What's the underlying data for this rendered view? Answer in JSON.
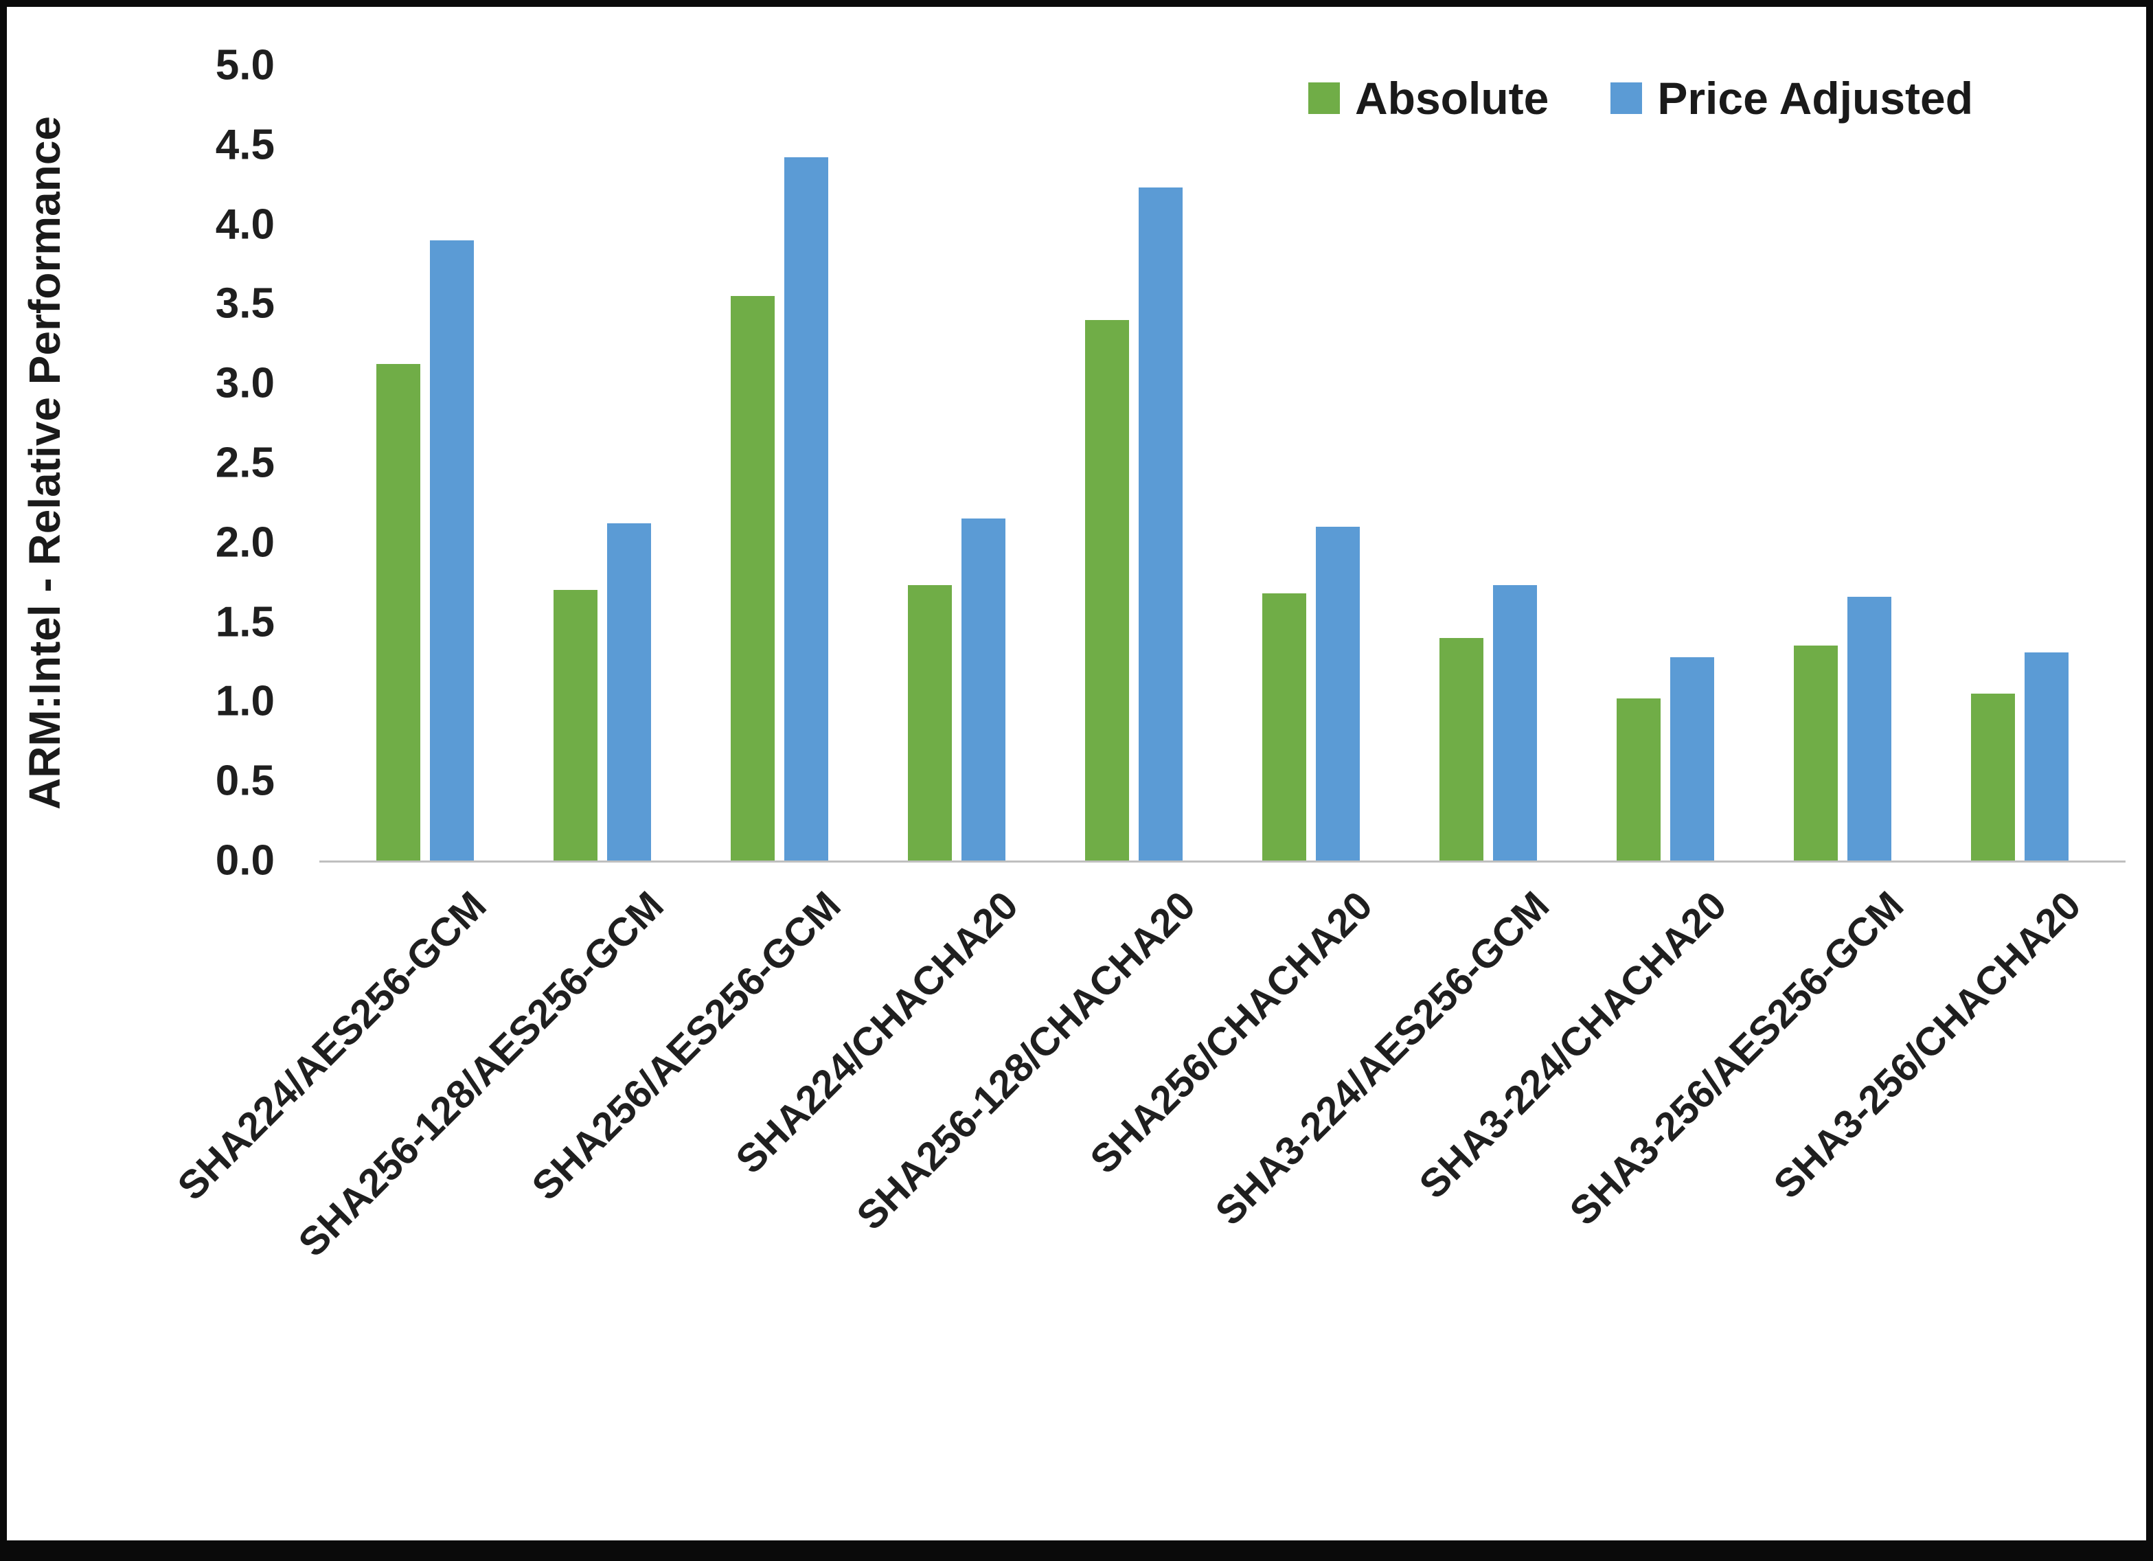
{
  "chart_data": {
    "type": "bar",
    "title": "",
    "ylabel": "ARM:Intel - Relative Performance",
    "xlabel": "",
    "ylim": [
      0,
      5
    ],
    "ytick_step": 0.5,
    "grid": false,
    "legend_position": "top-right",
    "categories": [
      "SHA224/AES256-GCM",
      "SHA256-128/AES256-GCM",
      "SHA256/AES256-GCM",
      "SHA224/CHACHA20",
      "SHA256-128/CHACHA20",
      "SHA256/CHACHA20",
      "SHA3-224/AES256-GCM",
      "SHA3-224/CHACHA20",
      "SHA3-256/AES256-GCM",
      "SHA3-256/CHACHA20"
    ],
    "series": [
      {
        "name": "Absolute",
        "color": "#70AD47",
        "values": [
          3.12,
          1.7,
          3.55,
          1.73,
          3.4,
          1.68,
          1.4,
          1.02,
          1.35,
          1.05
        ]
      },
      {
        "name": "Price Adjusted",
        "color": "#5B9BD5",
        "values": [
          3.9,
          2.12,
          4.42,
          2.15,
          4.23,
          2.1,
          1.73,
          1.28,
          1.66,
          1.31
        ]
      }
    ]
  }
}
